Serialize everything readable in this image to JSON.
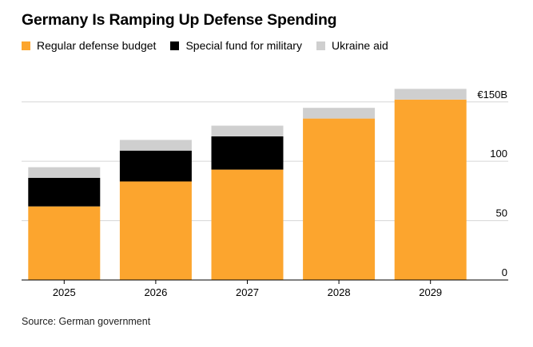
{
  "title": "Germany Is Ramping Up Defense Spending",
  "source": "Source: German government",
  "legend": [
    {
      "label": "Regular defense budget",
      "color": "#fca52e"
    },
    {
      "label": "Special fund for military",
      "color": "#000000"
    },
    {
      "label": "Ukraine aid",
      "color": "#cfcfcf"
    }
  ],
  "chart_data": {
    "type": "bar",
    "stacked": true,
    "title": "Germany Is Ramping Up Defense Spending",
    "categories": [
      "2025",
      "2026",
      "2027",
      "2028",
      "2029"
    ],
    "series": [
      {
        "name": "Regular defense budget",
        "color": "#fca52e",
        "values": [
          62,
          83,
          93,
          136,
          152
        ]
      },
      {
        "name": "Special fund for military",
        "color": "#000000",
        "values": [
          24,
          26,
          28,
          0,
          0
        ]
      },
      {
        "name": "Ukraine aid",
        "color": "#cfcfcf",
        "values": [
          9,
          9,
          9,
          9,
          9
        ]
      }
    ],
    "ylim": [
      0,
      170
    ],
    "yticks": [
      {
        "value": 0,
        "label": "0"
      },
      {
        "value": 50,
        "label": "50"
      },
      {
        "value": 100,
        "label": "100"
      },
      {
        "value": 150,
        "label": "€150B"
      }
    ],
    "xlabel": "",
    "ylabel": "",
    "grid": true
  }
}
